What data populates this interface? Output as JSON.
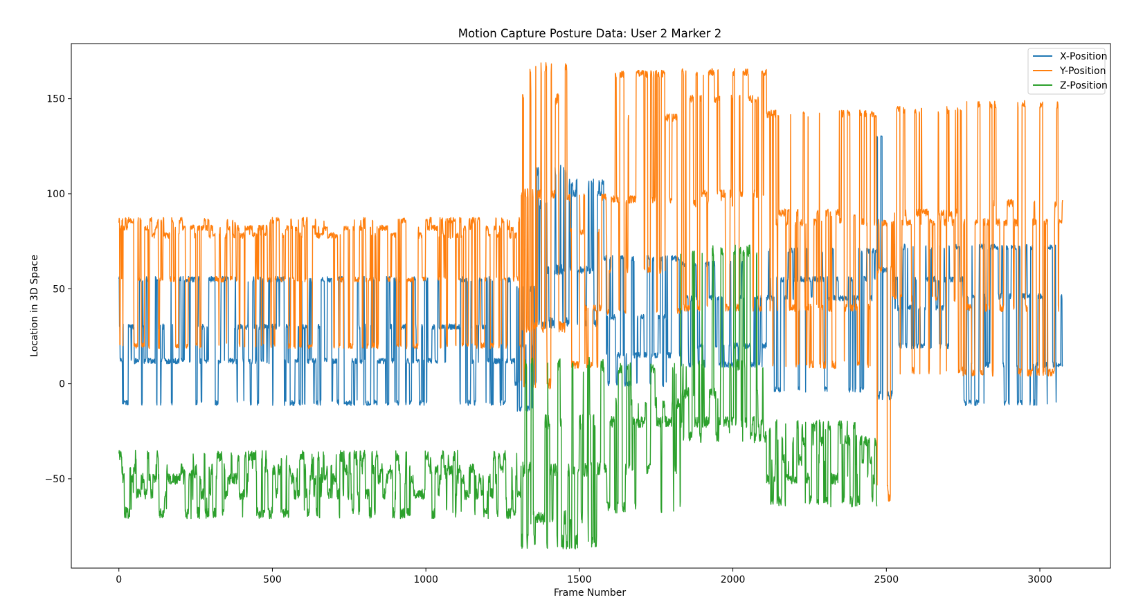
{
  "chart_data": {
    "type": "line",
    "title": "Motion Capture Posture Data: User 2 Marker 2",
    "xlabel": "Frame Number",
    "ylabel": "Location in 3D Space",
    "xlim": [
      -155,
      3230
    ],
    "ylim": [
      -97,
      179
    ],
    "x_ticks": [
      0,
      500,
      1000,
      1500,
      2000,
      2500,
      3000
    ],
    "y_ticks": [
      -50,
      0,
      50,
      100,
      150
    ],
    "grid": false,
    "legend_position": "top-right",
    "frame_count": 3075,
    "series": [
      {
        "name": "X-Position",
        "color": "#1f77b4",
        "segments": [
          {
            "x0": 0,
            "x1": 1290,
            "levels": [
              55,
              30,
              12,
              -10
            ],
            "noise": 1.5
          },
          {
            "x0": 1290,
            "x1": 1360,
            "levels": [
              50,
              20,
              0,
              -13
            ],
            "noise": 1.5
          },
          {
            "x0": 1360,
            "x1": 1460,
            "levels": [
              112,
              95,
              60,
              32
            ],
            "noise": 3
          },
          {
            "x0": 1460,
            "x1": 1580,
            "levels": [
              106,
              100,
              60,
              32
            ],
            "noise": 2
          },
          {
            "x0": 1580,
            "x1": 1830,
            "levels": [
              66,
              35,
              15,
              0
            ],
            "noise": 1.5
          },
          {
            "x0": 1830,
            "x1": 2110,
            "levels": [
              63,
              45,
              20,
              10
            ],
            "noise": 1.5
          },
          {
            "x0": 2110,
            "x1": 2470,
            "levels": [
              70,
              55,
              45,
              -3
            ],
            "noise": 1.5
          },
          {
            "x0": 2470,
            "x1": 2520,
            "levels": [
              131,
              60,
              -5,
              -7
            ],
            "noise": 1.5
          },
          {
            "x0": 2520,
            "x1": 2750,
            "levels": [
              72,
              55,
              40,
              20
            ],
            "noise": 1.5
          },
          {
            "x0": 2750,
            "x1": 3075,
            "levels": [
              72,
              46,
              10,
              -10
            ],
            "noise": 1.5
          }
        ]
      },
      {
        "name": "Y-Position",
        "color": "#ff7f0e",
        "segments": [
          {
            "x0": 0,
            "x1": 1310,
            "levels": [
              86,
              82,
              78,
              55,
              20
            ],
            "noise": 1.5
          },
          {
            "x0": 1310,
            "x1": 1460,
            "levels": [
              166,
              150,
              100,
              30,
              0
            ],
            "noise": 3
          },
          {
            "x0": 1460,
            "x1": 1590,
            "levels": [
              98,
              80,
              40,
              10
            ],
            "noise": 2
          },
          {
            "x0": 1590,
            "x1": 1830,
            "levels": [
              163,
              140,
              97,
              60,
              38
            ],
            "noise": 2
          },
          {
            "x0": 1830,
            "x1": 2110,
            "levels": [
              164,
              150,
              100,
              95,
              40
            ],
            "noise": 2
          },
          {
            "x0": 2110,
            "x1": 2470,
            "levels": [
              142,
              90,
              85,
              40,
              10
            ],
            "noise": 2
          },
          {
            "x0": 2470,
            "x1": 2520,
            "levels": [
              85,
              60,
              -55,
              -60
            ],
            "noise": 2
          },
          {
            "x0": 2520,
            "x1": 2750,
            "levels": [
              144,
              90,
              85,
              45,
              7
            ],
            "noise": 2
          },
          {
            "x0": 2750,
            "x1": 3075,
            "levels": [
              147,
              95,
              85,
              40,
              6
            ],
            "noise": 2
          }
        ]
      },
      {
        "name": "Z-Position",
        "color": "#2ca02c",
        "segments": [
          {
            "x0": 0,
            "x1": 1310,
            "levels": [
              -38,
              -45,
              -50,
              -58,
              -68
            ],
            "noise": 3
          },
          {
            "x0": 1310,
            "x1": 1580,
            "levels": [
              10,
              -20,
              -45,
              -70,
              -83
            ],
            "noise": 4
          },
          {
            "x0": 1580,
            "x1": 1830,
            "levels": [
              8,
              -10,
              -20,
              -45,
              -65
            ],
            "noise": 3
          },
          {
            "x0": 1830,
            "x1": 2110,
            "levels": [
              10,
              -5,
              -20,
              -28,
              70
            ],
            "noise": 3
          },
          {
            "x0": 2110,
            "x1": 2470,
            "levels": [
              -22,
              -30,
              -40,
              -50,
              -62
            ],
            "noise": 3
          },
          {
            "x0": 2470,
            "x1": 2520,
            "levels": [
              50,
              -30,
              -50,
              -58
            ],
            "noise": 3
          },
          {
            "x0": 2520,
            "x1": 2750,
            "levels": [
              -22,
              -30,
              -40,
              -50,
              -60
            ],
            "noise": 3
          },
          {
            "x0": 2750,
            "x1": 3075,
            "levels": [
              -12,
              -20,
              -35,
              -50,
              -62
            ],
            "noise": 3
          }
        ]
      }
    ]
  }
}
